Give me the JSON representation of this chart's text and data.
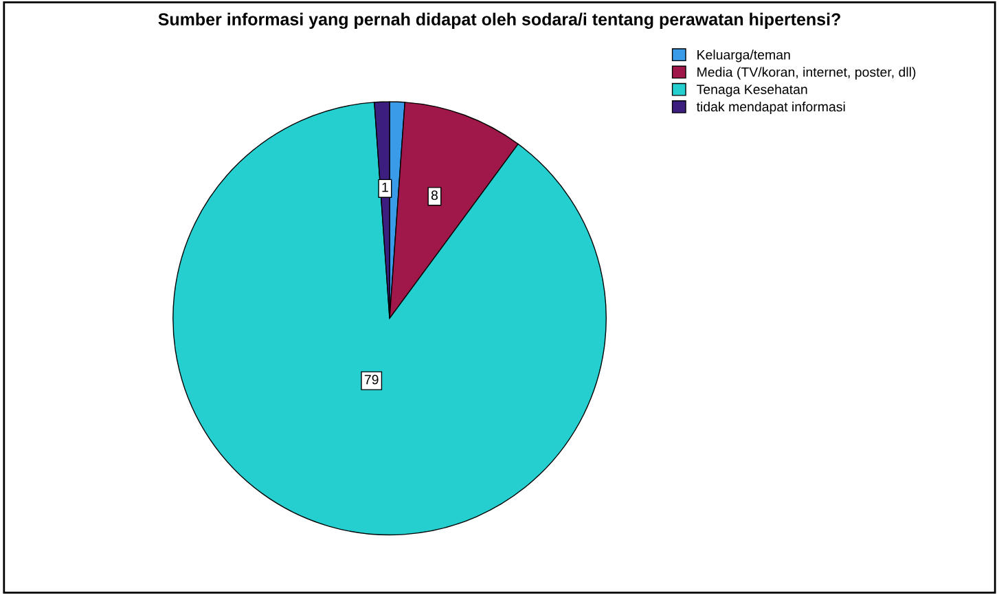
{
  "chart_data": {
    "type": "pie",
    "title": "Sumber informasi yang pernah didapat oleh sodara/i tentang perawatan hipertensi?",
    "categories": [
      "Keluarga/teman",
      "Media (TV/koran, internet, poster, dll)",
      "Tenaga Kesehatan",
      "tidak mendapat informasi"
    ],
    "values": [
      1,
      8,
      79,
      1
    ],
    "colors": [
      "#3a9be8",
      "#a0174a",
      "#25cfcf",
      "#3b1e7e"
    ],
    "value_labels": [
      null,
      "8",
      "79",
      "1"
    ],
    "legend": "top right"
  }
}
